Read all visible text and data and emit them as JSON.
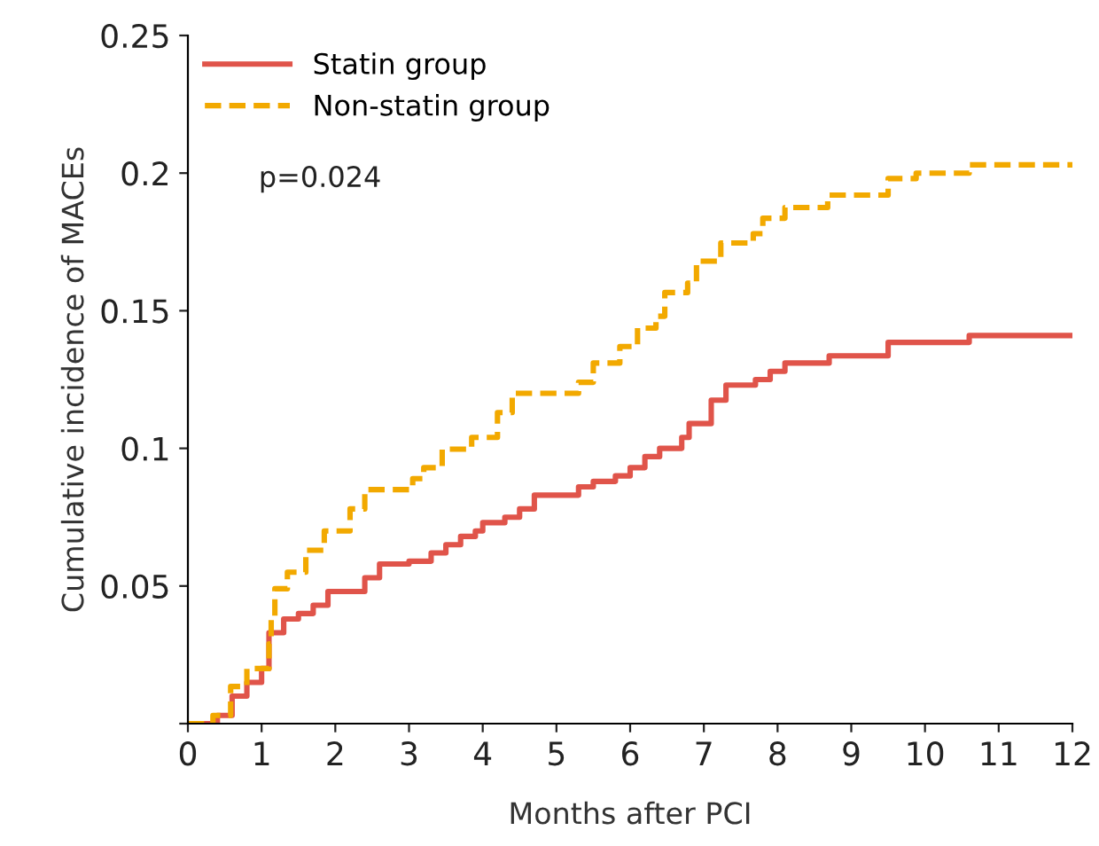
{
  "chart_data": {
    "type": "step",
    "xlabel": "Months after PCI",
    "ylabel": "Cumulative incidence of MACEs",
    "xlim": [
      0,
      12
    ],
    "xticks": [
      0,
      1,
      2,
      3,
      4,
      5,
      6,
      7,
      8,
      9,
      10,
      11,
      12
    ],
    "ylim": [
      0,
      0.25
    ],
    "yticks": [
      {
        "value": 0,
        "label": null
      },
      0.05,
      0.1,
      0.15,
      0.2,
      0.25
    ],
    "legend": "top left",
    "grid": false,
    "annotations": [
      "p=0.024"
    ],
    "series": [
      {
        "name": "Statin group",
        "color": "#e0544a",
        "line_style": "solid",
        "x": [
          0,
          0.4,
          0.6,
          0.8,
          1.0,
          1.1,
          1.3,
          1.5,
          1.7,
          1.9,
          2.4,
          2.6,
          3.0,
          3.3,
          3.5,
          3.7,
          3.9,
          4.0,
          4.3,
          4.5,
          4.7,
          5.3,
          5.5,
          5.8,
          6.0,
          6.2,
          6.4,
          6.7,
          6.8,
          7.1,
          7.3,
          7.7,
          7.9,
          8.1,
          8.7,
          9.5,
          10.6,
          12
        ],
        "values": [
          0,
          0.003,
          0.01,
          0.015,
          0.02,
          0.033,
          0.038,
          0.04,
          0.043,
          0.048,
          0.053,
          0.058,
          0.059,
          0.062,
          0.065,
          0.068,
          0.07,
          0.073,
          0.075,
          0.078,
          0.083,
          0.086,
          0.088,
          0.09,
          0.093,
          0.097,
          0.1,
          0.104,
          0.109,
          0.1175,
          0.123,
          0.125,
          0.128,
          0.131,
          0.1336,
          0.1385,
          0.141,
          0.141
        ]
      },
      {
        "name": "Non-statin group",
        "color": "#f2a900",
        "line_style": "dashed",
        "x": [
          0,
          0.34,
          0.58,
          0.8,
          1.1,
          1.13,
          1.18,
          1.35,
          1.6,
          1.85,
          2.2,
          2.4,
          3.05,
          3.2,
          3.45,
          3.85,
          4.2,
          4.4,
          5.3,
          5.5,
          5.86,
          6.1,
          6.35,
          6.47,
          6.78,
          6.9,
          7.23,
          7.67,
          7.8,
          8.1,
          8.68,
          9.5,
          9.88,
          10.6,
          12
        ],
        "values": [
          0,
          0.003,
          0.0135,
          0.02,
          0.029,
          0.039,
          0.049,
          0.055,
          0.063,
          0.07,
          0.078,
          0.085,
          0.089,
          0.093,
          0.0997,
          0.104,
          0.113,
          0.12,
          0.124,
          0.131,
          0.137,
          0.1437,
          0.148,
          0.1566,
          0.16,
          0.168,
          0.1746,
          0.178,
          0.1836,
          0.1875,
          0.192,
          0.198,
          0.2,
          0.203,
          0.203
        ]
      }
    ]
  }
}
